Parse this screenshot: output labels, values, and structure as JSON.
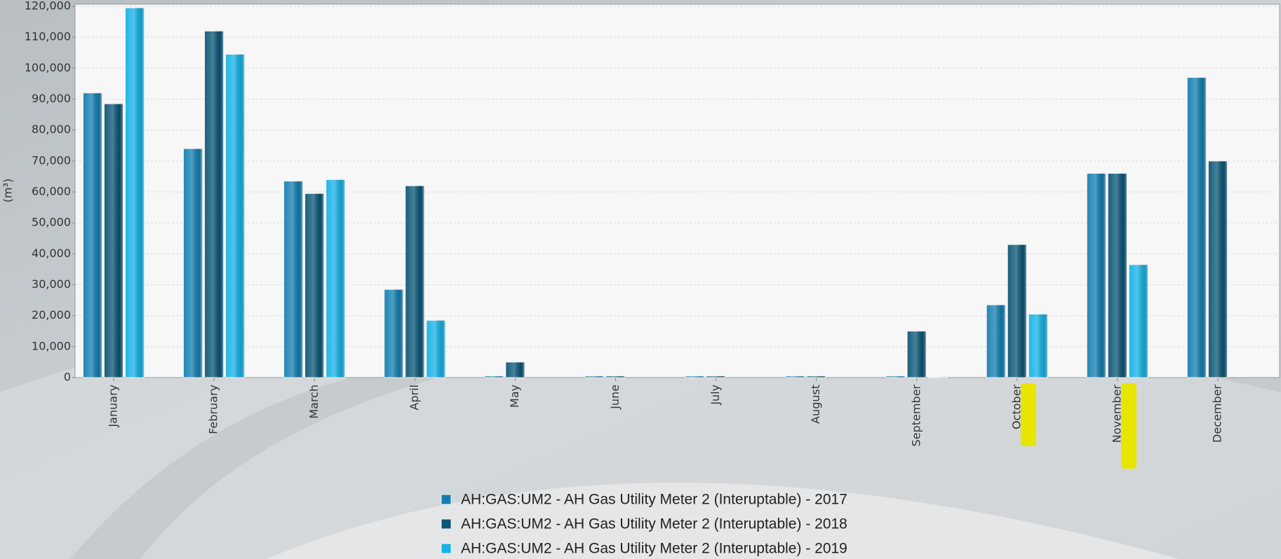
{
  "chart_data": {
    "type": "bar",
    "y_label": "(m³)",
    "categories": [
      "January",
      "February",
      "March",
      "April",
      "May",
      "June",
      "July",
      "August",
      "September",
      "October",
      "November",
      "December"
    ],
    "series": [
      {
        "name": "AH:GAS:UM2 - AH Gas Utility Meter 2 (Interuptable) - 2017",
        "color": "#137fb0",
        "values": [
          92000,
          74000,
          63500,
          28500,
          500,
          500,
          500,
          500,
          500,
          23500,
          66000,
          97000
        ]
      },
      {
        "name": "AH:GAS:UM2 - AH Gas Utility Meter 2 (Interuptable) - 2018",
        "color": "#0b5676",
        "values": [
          88500,
          112000,
          59500,
          62000,
          5000,
          500,
          500,
          500,
          15000,
          43000,
          66000,
          70000
        ]
      },
      {
        "name": "AH:GAS:UM2 - AH Gas Utility Meter 2 (Interuptable) - 2019",
        "color": "#16b2e6",
        "values": [
          119500,
          104500,
          64000,
          18500,
          0,
          0,
          0,
          0,
          200,
          20500,
          36500,
          null
        ]
      }
    ],
    "ylim": [
      0,
      120000
    ],
    "yticks": [
      0,
      {
        "value": 10000,
        "label": "10,000"
      },
      {
        "value": 20000,
        "label": "20,000"
      },
      {
        "value": 30000,
        "label": "30,000"
      },
      {
        "value": 40000,
        "label": "40,000"
      },
      {
        "value": 50000,
        "label": "50,000"
      },
      {
        "value": 60000,
        "label": "60,000"
      },
      {
        "value": 70000,
        "label": "70,000"
      },
      {
        "value": 80000,
        "label": "80,000"
      },
      {
        "value": 90000,
        "label": "90,000"
      },
      {
        "value": 100000,
        "label": "100,000"
      },
      {
        "value": 110000,
        "label": "110,000"
      },
      {
        "value": 120000,
        "label": "120,000"
      }
    ],
    "grid": true
  }
}
